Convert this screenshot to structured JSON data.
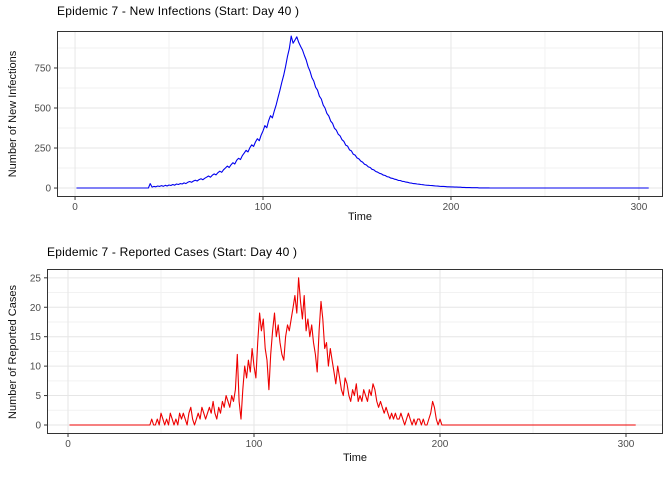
{
  "theme": {
    "background": "#FFFFFF",
    "panel_background": "#FFFFFF",
    "panel_border": "#333333",
    "grid_major": "#E6E6E6",
    "grid_minor": "#F2F2F2",
    "tick_color": "#333333",
    "tick_label_color": "#4D4D4D",
    "title_color": "#000000",
    "axis_title_color": "#111111"
  },
  "chart_data": [
    {
      "type": "line",
      "title": "Epidemic 7 - New Infections (Start: Day 40 )",
      "xlabel": "Time",
      "ylabel": "Number of New Infections",
      "line_color": "#0000EE",
      "legend": "none",
      "grid": true,
      "x_start": 1,
      "x_step": 1,
      "xlim": [
        -9.6,
        312.8
      ],
      "ylim": [
        -56,
        981
      ],
      "xticks": [
        0,
        100,
        200,
        300
      ],
      "xticks_minor": [
        50,
        150,
        250
      ],
      "yticks": [
        0,
        250,
        500,
        750
      ],
      "yticks_minor": [
        125,
        375,
        625,
        875
      ],
      "values": [
        0,
        0,
        0,
        0,
        0,
        0,
        0,
        0,
        0,
        0,
        0,
        0,
        0,
        0,
        0,
        0,
        0,
        0,
        0,
        0,
        0,
        0,
        0,
        0,
        0,
        0,
        0,
        0,
        0,
        0,
        0,
        0,
        0,
        0,
        0,
        0,
        0,
        0,
        0,
        28,
        6,
        10,
        8,
        13,
        10,
        15,
        11,
        17,
        13,
        19,
        16,
        22,
        18,
        25,
        22,
        28,
        25,
        32,
        28,
        36,
        41,
        36,
        44,
        49,
        44,
        53,
        58,
        52,
        61,
        68,
        75,
        68,
        80,
        88,
        82,
        96,
        105,
        98,
        114,
        125,
        137,
        128,
        146,
        158,
        150,
        173,
        186,
        178,
        202,
        218,
        236,
        226,
        252,
        270,
        260,
        288,
        308,
        296,
        330,
        356,
        390,
        376,
        420,
        452,
        438,
        482,
        520,
        565,
        610,
        660,
        705,
        760,
        820,
        870,
        950,
        905,
        925,
        945,
        910,
        885,
        862,
        828,
        800,
        758,
        730,
        690,
        668,
        630,
        612,
        574,
        556,
        518,
        500,
        466,
        450,
        418,
        404,
        374,
        362,
        336,
        326,
        302,
        292,
        268,
        262,
        238,
        232,
        212,
        206,
        188,
        182,
        168,
        162,
        149,
        144,
        132,
        128,
        117,
        113,
        103,
        99,
        92,
        88,
        81,
        78,
        71,
        69,
        62,
        60,
        55,
        53,
        48,
        47,
        42,
        41,
        37,
        36,
        32,
        31,
        28,
        27,
        25,
        24,
        22,
        21,
        19,
        18,
        17,
        16,
        15,
        14,
        13,
        12,
        11,
        10,
        10,
        9,
        8,
        8,
        7,
        7,
        6,
        6,
        5,
        5,
        4,
        4,
        3,
        3,
        3,
        2,
        2,
        2,
        2,
        1,
        1,
        1,
        1,
        1,
        1,
        0,
        0,
        0,
        0,
        0,
        0,
        0,
        0,
        0,
        0,
        0,
        0,
        0,
        0,
        0,
        0,
        0,
        0,
        0,
        0,
        0,
        0,
        0,
        0,
        0,
        0,
        0,
        0,
        0,
        0,
        0,
        0,
        0,
        0,
        0,
        0,
        0,
        0,
        0,
        0,
        0,
        0,
        0,
        0,
        0,
        0,
        0,
        0,
        0,
        0,
        0,
        0,
        0,
        0,
        0,
        0,
        0,
        0,
        0,
        0,
        0,
        0,
        0,
        0,
        0,
        0,
        0,
        0,
        0,
        0,
        0,
        0,
        0,
        0,
        0,
        0,
        0,
        0,
        0,
        0,
        0,
        0,
        0,
        0,
        0
      ]
    },
    {
      "type": "line",
      "title": "Epidemic 7 - Reported Cases (Start: Day 40 )",
      "xlabel": "Time",
      "ylabel": "Number of Reported Cases",
      "line_color": "#EE0000",
      "legend": "none",
      "grid": true,
      "x_start": 1,
      "x_step": 1,
      "xlim": [
        -11.3,
        319.9
      ],
      "ylim": [
        -1.53,
        26.5
      ],
      "xticks": [
        0,
        100,
        200,
        300
      ],
      "xticks_minor": [
        50,
        150,
        250
      ],
      "yticks": [
        0,
        5,
        10,
        15,
        20,
        25
      ],
      "yticks_minor": [
        2.5,
        7.5,
        12.5,
        17.5,
        22.5
      ],
      "values": [
        0,
        0,
        0,
        0,
        0,
        0,
        0,
        0,
        0,
        0,
        0,
        0,
        0,
        0,
        0,
        0,
        0,
        0,
        0,
        0,
        0,
        0,
        0,
        0,
        0,
        0,
        0,
        0,
        0,
        0,
        0,
        0,
        0,
        0,
        0,
        0,
        0,
        0,
        0,
        0,
        0,
        0,
        0,
        0,
        1,
        0,
        0,
        1,
        0,
        2,
        1,
        0,
        1,
        0,
        2,
        1,
        0,
        1,
        0,
        2,
        1,
        2,
        1,
        0,
        2,
        3,
        1,
        0,
        1,
        2,
        1,
        3,
        2,
        1,
        2,
        3,
        2,
        4,
        2,
        1,
        3,
        2,
        4,
        3,
        5,
        4,
        3,
        5,
        4,
        6,
        12,
        4,
        1,
        6,
        10,
        8,
        11,
        9,
        13,
        10,
        8,
        14,
        19,
        16,
        18,
        13,
        11,
        6,
        12,
        16,
        19,
        15,
        17,
        14,
        12,
        11,
        15,
        17,
        16,
        18,
        20,
        22,
        19,
        25,
        21,
        18,
        22,
        16,
        18,
        15,
        17,
        14,
        12,
        9,
        16,
        21,
        18,
        13,
        14,
        10,
        13,
        11,
        9,
        7,
        10,
        8,
        6,
        5,
        8,
        7,
        5,
        4,
        6,
        5,
        7,
        4,
        5,
        4,
        6,
        5,
        4,
        6,
        5,
        7,
        6,
        4,
        3,
        4,
        3,
        2,
        3,
        2,
        1,
        2,
        1,
        2,
        1,
        1,
        2,
        1,
        0,
        1,
        2,
        1,
        0,
        1,
        0,
        1,
        1,
        0,
        1,
        0,
        0,
        1,
        2,
        4,
        3,
        1,
        0,
        1,
        0,
        0,
        0,
        0,
        0,
        0,
        0,
        0,
        0,
        0,
        0,
        0,
        0,
        0,
        0,
        0,
        0,
        0,
        0,
        0,
        0,
        0,
        0,
        0,
        0,
        0,
        0,
        0,
        0,
        0,
        0,
        0,
        0,
        0,
        0,
        0,
        0,
        0,
        0,
        0,
        0,
        0,
        0,
        0,
        0,
        0,
        0,
        0,
        0,
        0,
        0,
        0,
        0,
        0,
        0,
        0,
        0,
        0,
        0,
        0,
        0,
        0,
        0,
        0,
        0,
        0,
        0,
        0,
        0,
        0,
        0,
        0,
        0,
        0,
        0,
        0,
        0,
        0,
        0,
        0,
        0,
        0,
        0,
        0,
        0,
        0,
        0,
        0,
        0,
        0,
        0,
        0,
        0,
        0,
        0,
        0,
        0,
        0,
        0,
        0,
        0,
        0,
        0,
        0,
        0
      ]
    }
  ]
}
